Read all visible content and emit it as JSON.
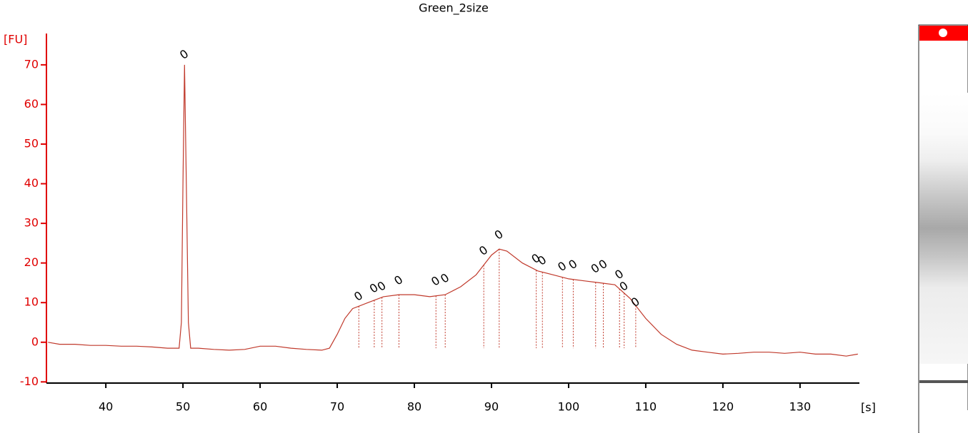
{
  "chart_data": {
    "type": "line",
    "title": "Green_2size",
    "x_label": "[s]",
    "y_label": "[FU]",
    "x": [
      32.5,
      34,
      36,
      38,
      40,
      42,
      44,
      46,
      48,
      49.5,
      49.8,
      50.0,
      50.2,
      50.4,
      50.7,
      51,
      52,
      54,
      56,
      58,
      60,
      62,
      64,
      66,
      68,
      69,
      70,
      71,
      72,
      74,
      76,
      78,
      80,
      82,
      84,
      86,
      88,
      90,
      91,
      92,
      94,
      96,
      98,
      100,
      102,
      104,
      106,
      108,
      110,
      112,
      114,
      116,
      118,
      120,
      122,
      124,
      126,
      128,
      130,
      132,
      134,
      136,
      137.5
    ],
    "series": [
      {
        "color": "#c0392b",
        "values": [
          0,
          -0.5,
          -0.5,
          -0.8,
          -0.8,
          -1,
          -1,
          -1.2,
          -1.5,
          -1.5,
          5,
          40,
          70,
          45,
          5,
          -1.5,
          -1.5,
          -1.8,
          -2,
          -1.8,
          -1,
          -1,
          -1.5,
          -1.8,
          -2,
          -1.5,
          2,
          6,
          8.5,
          10,
          11.5,
          12,
          12,
          11.5,
          12,
          14,
          17,
          22,
          23.5,
          23,
          20,
          18,
          17,
          16,
          15.5,
          15,
          14.5,
          11,
          6,
          2,
          -0.5,
          -2,
          -2.5,
          -3,
          -2.8,
          -2.5,
          -2.5,
          -2.8,
          -2.5,
          -3,
          -3,
          -3.5,
          -3
        ]
      }
    ],
    "annotations": [
      {
        "x": 50.2,
        "y": 72.5,
        "text": "0"
      },
      {
        "x": 72.8,
        "y": 11.5,
        "text": "0"
      },
      {
        "x": 74.8,
        "y": 13.5,
        "text": "0"
      },
      {
        "x": 75.8,
        "y": 14,
        "text": "0"
      },
      {
        "x": 78.0,
        "y": 15.5,
        "text": "0"
      },
      {
        "x": 82.8,
        "y": 15.3,
        "text": "0"
      },
      {
        "x": 84.0,
        "y": 16,
        "text": "0"
      },
      {
        "x": 89,
        "y": 23,
        "text": "0"
      },
      {
        "x": 91,
        "y": 27,
        "text": "0"
      },
      {
        "x": 95.8,
        "y": 21,
        "text": "0"
      },
      {
        "x": 96.6,
        "y": 20.5,
        "text": "0"
      },
      {
        "x": 99.2,
        "y": 19,
        "text": "0"
      },
      {
        "x": 100.6,
        "y": 19.5,
        "text": "0"
      },
      {
        "x": 103.5,
        "y": 18.5,
        "text": "0"
      },
      {
        "x": 104.5,
        "y": 19.5,
        "text": "0"
      },
      {
        "x": 106.6,
        "y": 17,
        "text": "0"
      },
      {
        "x": 107.2,
        "y": 14,
        "text": "0"
      },
      {
        "x": 108.7,
        "y": 10,
        "text": "0"
      }
    ],
    "xlim": [
      32.3,
      137.7
    ],
    "ylim": [
      -10.3,
      77.9
    ],
    "xticks": [
      40,
      50,
      60,
      70,
      80,
      90,
      100,
      110,
      120,
      130
    ],
    "yticks": [
      -10,
      0,
      10,
      20,
      30,
      40,
      50,
      60,
      70
    ],
    "axis_color": "#e00000"
  }
}
